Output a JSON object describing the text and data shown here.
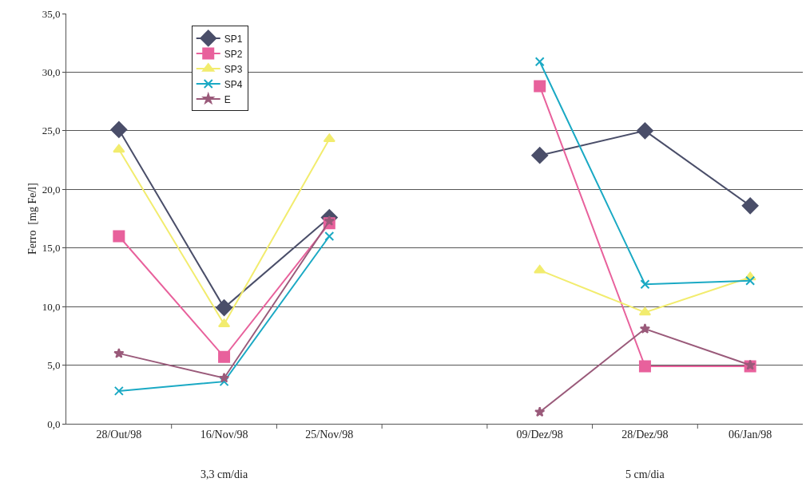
{
  "chart_data": {
    "type": "line",
    "ylabel": "Ferro  [mg Fe/l]",
    "categories": [
      "28/Out/98",
      "16/Nov/98",
      "25/Nov/98",
      null,
      "09/Dez/98",
      "28/Dez/98",
      "06/Jan/98"
    ],
    "series": [
      {
        "name": "SP1",
        "color": "#4a4e69",
        "marker": "diamond",
        "values": [
          25.1,
          9.9,
          17.6,
          null,
          22.9,
          25.0,
          18.6
        ]
      },
      {
        "name": "SP2",
        "color": "#e8619c",
        "marker": "square",
        "values": [
          16.0,
          5.7,
          17.1,
          null,
          28.8,
          4.9,
          4.9
        ]
      },
      {
        "name": "SP3",
        "color": "#f2ec6e",
        "marker": "triangle",
        "values": [
          23.4,
          8.5,
          24.3,
          null,
          13.1,
          9.5,
          12.5
        ]
      },
      {
        "name": "SP4",
        "color": "#1aa9c4",
        "marker": "cross",
        "values": [
          2.8,
          3.6,
          16.0,
          null,
          30.9,
          11.9,
          12.2
        ]
      },
      {
        "name": "E",
        "color": "#9a5a7a",
        "marker": "star",
        "values": [
          6.0,
          3.9,
          17.3,
          null,
          1.0,
          8.1,
          5.0
        ]
      }
    ],
    "ylim": [
      0,
      35
    ],
    "yticks": [
      {
        "value": 0,
        "label": "0,0"
      },
      {
        "value": 5,
        "label": "5,0"
      },
      {
        "value": 10,
        "label": "10,0"
      },
      {
        "value": 15,
        "label": "15,0"
      },
      {
        "value": 20,
        "label": "20,0"
      },
      {
        "value": 25,
        "label": "25,0"
      },
      {
        "value": 30,
        "label": "30,0"
      },
      {
        "value": 35,
        "label": "35,0"
      }
    ],
    "grid": "y",
    "legend": "top left",
    "line_style": "solid",
    "annotations": [
      "3,3 cm/dia",
      "5 cm/dia"
    ]
  }
}
